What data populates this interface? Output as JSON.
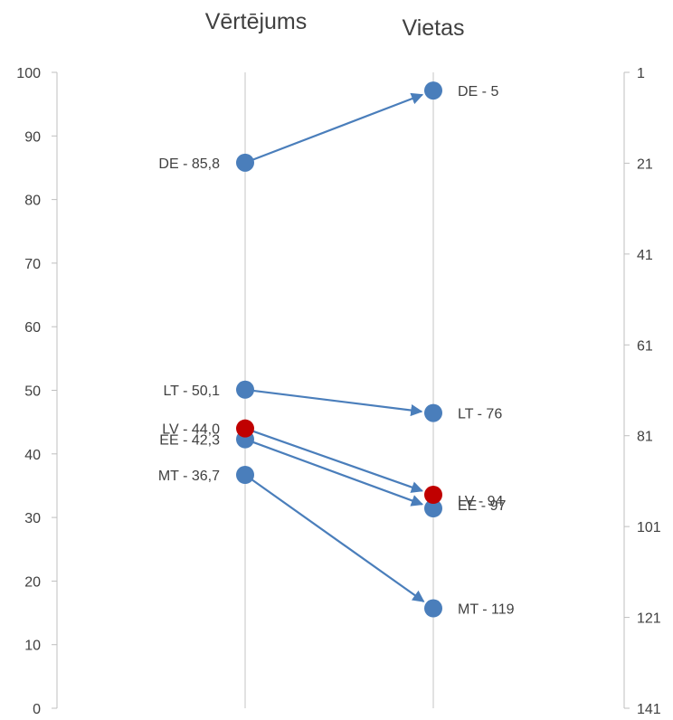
{
  "chart_data": {
    "type": "slope",
    "columns": [
      "Vērtējums",
      "Vietas"
    ],
    "left_axis": {
      "range": [
        0,
        100
      ],
      "ticks": [
        0,
        10,
        20,
        30,
        40,
        50,
        60,
        70,
        80,
        90,
        100
      ]
    },
    "right_axis": {
      "range": [
        1,
        141
      ],
      "reversed": true,
      "ticks": [
        1,
        21,
        41,
        61,
        81,
        101,
        121,
        141
      ]
    },
    "items": [
      {
        "code": "DE",
        "score": 85.8,
        "score_label": "DE - 85,8",
        "rank": 5,
        "rank_label": "DE - 5",
        "color": "#4a7ebb"
      },
      {
        "code": "LT",
        "score": 50.1,
        "score_label": "LT - 50,1",
        "rank": 76,
        "rank_label": "LT - 76",
        "color": "#4a7ebb"
      },
      {
        "code": "EE",
        "score": 42.3,
        "score_label": "EE - 42,3",
        "rank": 97,
        "rank_label": "EE - 97",
        "color": "#4a7ebb"
      },
      {
        "code": "MT",
        "score": 36.7,
        "score_label": "MT - 36,7",
        "rank": 119,
        "rank_label": "MT - 119",
        "color": "#4a7ebb"
      },
      {
        "code": "LV",
        "score": 44.0,
        "score_label": "LV - 44,0",
        "rank": 94,
        "rank_label": "LV - 94",
        "color": "#c00000"
      }
    ],
    "arrow_color": "#4a7ebb",
    "gridline_color": "#d9d9d9"
  }
}
